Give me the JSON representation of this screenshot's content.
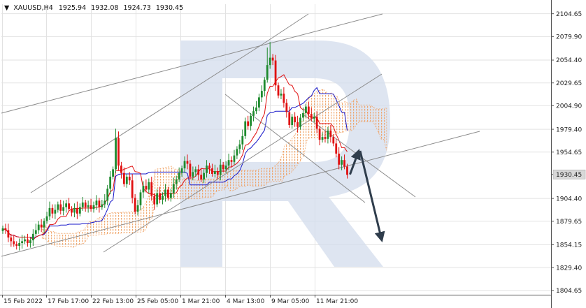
{
  "header": {
    "symbol": "XAUUSD,H4",
    "open": "1925.94",
    "high": "1932.08",
    "low": "1924.73",
    "close": "1930.45"
  },
  "colors": {
    "bull": "#1e8a2e",
    "bear": "#e01010",
    "tenkan": "#e01010",
    "kijun": "#1515c8",
    "cloud": "#f0a060",
    "trendline": "#8c8c8c",
    "arrow": "#2f3d4c",
    "price_label_bg": "#d8d8d8",
    "grid": "#e2e2e2",
    "watermark": "#d3dcec"
  },
  "chart_data": {
    "type": "candlestick",
    "symbol": "XAUUSD",
    "timeframe": "H4",
    "ylim": [
      1800,
      2115
    ],
    "y_ticks": [
      2104.65,
      2079.9,
      2054.4,
      2029.65,
      2004.9,
      1979.4,
      1954.65,
      1930.45,
      1904.4,
      1879.65,
      1854.15,
      1829.4,
      1804.65
    ],
    "x_ticks": [
      "15 Feb 2022",
      "17 Feb 17:00",
      "22 Feb 13:00",
      "25 Feb 05:00",
      "1 Mar 21:00",
      "4 Mar 13:00",
      "9 Mar 05:00",
      "11 Mar 21:00"
    ],
    "last_price": 1930.45,
    "candles_close": [
      1872,
      1870,
      1862,
      1858,
      1855,
      1853,
      1856,
      1858,
      1860,
      1856,
      1859,
      1866,
      1870,
      1876,
      1873,
      1880,
      1885,
      1894,
      1888,
      1892,
      1898,
      1891,
      1895,
      1899,
      1893,
      1889,
      1894,
      1888,
      1895,
      1900,
      1895,
      1897,
      1893,
      1897,
      1902,
      1895,
      1898,
      1902,
      1915,
      1928,
      1936,
      1970,
      1940,
      1932,
      1920,
      1928,
      1924,
      1905,
      1890,
      1897,
      1911,
      1918,
      1914,
      1922,
      1907,
      1898,
      1910,
      1903,
      1907,
      1914,
      1905,
      1910,
      1920,
      1925,
      1932,
      1937,
      1945,
      1942,
      1928,
      1933,
      1936,
      1930,
      1925,
      1932,
      1940,
      1937,
      1931,
      1934,
      1930,
      1941,
      1936,
      1940,
      1946,
      1944,
      1951,
      1958,
      1963,
      1972,
      1988,
      1983,
      1994,
      1999,
      2003,
      2014,
      2021,
      2033,
      2049,
      2057,
      2054,
      2027,
      2016,
      2018,
      2008,
      1998,
      1984,
      1993,
      1987,
      1982,
      1992,
      1997,
      2004,
      1996,
      1991,
      1993,
      1980,
      1968,
      1971,
      1969,
      1978,
      1971,
      1964,
      1953,
      1941,
      1946,
      1939,
      1930
    ],
    "trendlines": [
      {
        "from": [
          "15 Feb 2022",
          1998
        ],
        "to": [
          "25 Mar 2022",
          2110
        ]
      },
      {
        "from": [
          "17 Feb 17:00",
          1893
        ],
        "to": [
          "7 Mar",
          2074
        ]
      },
      {
        "from": [
          "7 Mar",
          2074
        ],
        "to": [
          "17 Mar",
          2115
        ]
      },
      {
        "from": [
          "15 Feb 2022",
          1846
        ],
        "to": [
          "29 Mar",
          1980
        ]
      },
      {
        "from": [
          "21 Feb",
          1847
        ],
        "to": [
          "25 Mar",
          2037
        ]
      },
      {
        "from": [
          "5 Mar",
          2016
        ],
        "to": [
          "17 Mar",
          1913
        ]
      },
      {
        "from": [
          "8 Mar",
          2002
        ],
        "to": [
          "21 Mar",
          1907
        ]
      }
    ],
    "forecast": [
      {
        "from": 1930.45,
        "to": 1956
      },
      {
        "from": 1956,
        "to": 1859
      }
    ]
  }
}
